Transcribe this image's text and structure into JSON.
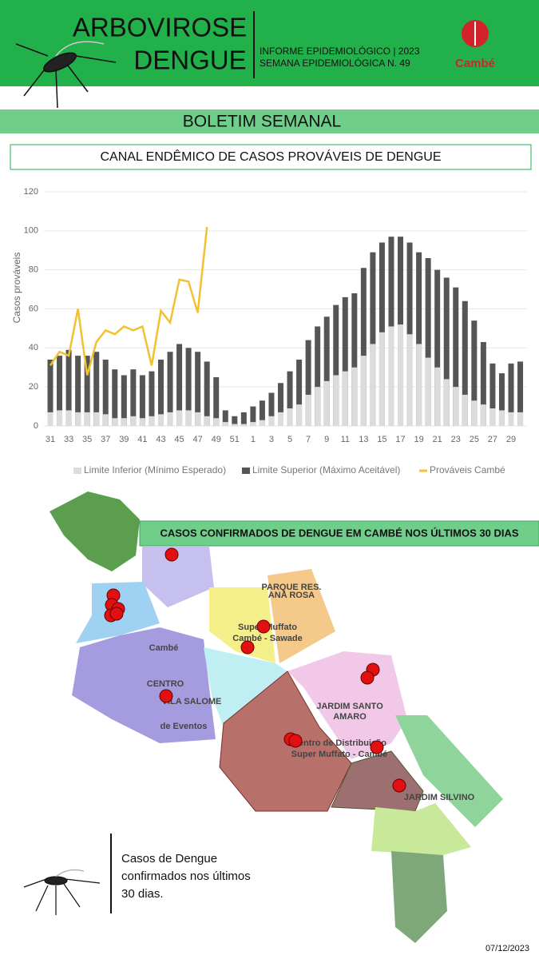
{
  "header": {
    "title_line1": "ARBOVIROSE",
    "title_line2": "DENGUE",
    "info_line1": "INFORME EPIDEMIOLÓGICO | 2023",
    "info_line2": "SEMANA EPIDEMIOLÓGICA  N. 49",
    "logo": "Cambé"
  },
  "banner": "BOLETIM SEMANAL",
  "chart_data": {
    "type": "bar_line",
    "title": "CANAL ENDÊMICO DE CASOS PROVÁVEIS DE DENGUE",
    "y_label": "Casos prováveis",
    "categories": [
      "31",
      null,
      "33",
      null,
      "35",
      null,
      "37",
      null,
      "39",
      null,
      "41",
      null,
      "43",
      null,
      "45",
      null,
      "47",
      null,
      "49",
      null,
      "51",
      null,
      "1",
      null,
      "3",
      null,
      "5",
      null,
      "7",
      null,
      "9",
      null,
      "11",
      null,
      "13",
      null,
      "15",
      null,
      "17",
      null,
      "19",
      null,
      "21",
      null,
      "23",
      null,
      "25",
      null,
      "27",
      null,
      "29",
      null
    ],
    "series": [
      {
        "name": "Limite Inferior (Mínimo Esperado)",
        "color": "#dcdcdc",
        "kind": "bar",
        "values": [
          7,
          8,
          8,
          7,
          7,
          7,
          6,
          4,
          4,
          5,
          4,
          5,
          6,
          7,
          8,
          8,
          7,
          5,
          4,
          2,
          1,
          1,
          2,
          3,
          5,
          7,
          9,
          11,
          16,
          20,
          23,
          26,
          28,
          30,
          36,
          42,
          48,
          51,
          52,
          47,
          42,
          35,
          30,
          24,
          20,
          16,
          13,
          11,
          9,
          8,
          7,
          7
        ]
      },
      {
        "name": "Limite Superior (Máximo Aceitável)",
        "color": "#555555",
        "kind": "bar",
        "values": [
          34,
          36,
          39,
          36,
          36,
          38,
          34,
          29,
          26,
          29,
          26,
          28,
          34,
          38,
          42,
          40,
          38,
          33,
          25,
          8,
          5,
          7,
          10,
          13,
          17,
          22,
          28,
          34,
          44,
          51,
          56,
          62,
          66,
          68,
          81,
          89,
          94,
          97,
          97,
          94,
          89,
          86,
          80,
          76,
          71,
          64,
          54,
          43,
          32,
          27,
          32,
          33
        ]
      },
      {
        "name": "Prováveis Cambé",
        "color": "#f2c12e",
        "kind": "line",
        "values": [
          31,
          38,
          36,
          60,
          26,
          43,
          49,
          47,
          51,
          49,
          51,
          31,
          59,
          53,
          75,
          74,
          58,
          102,
          null,
          null,
          null,
          null,
          null,
          null,
          null,
          null,
          null,
          null,
          null,
          null,
          null,
          null,
          null,
          null,
          null,
          null,
          null,
          null,
          null,
          null,
          null,
          null,
          null,
          null,
          null,
          null,
          null,
          null,
          null,
          null,
          null,
          null
        ]
      }
    ],
    "ylim": [
      0,
      120
    ],
    "yticks": [
      0,
      20,
      40,
      60,
      80,
      100,
      120
    ],
    "grid": true
  },
  "map": {
    "title": "CASOS CONFIRMADOS DE DENGUE EM CAMBÉ NOS ÚLTIMOS 30 DIAS",
    "labels": [
      "Cambé",
      "CENTRO",
      "VILA SALOME",
      "de Eventos",
      "Super Muffato",
      "Cambé - Sawade",
      "JARDIM SANTO",
      "AMARO",
      "Centro de Distribuição",
      "Super Muffato - Cambé",
      "JARDIM SILVINO",
      "PARQUE RES.",
      "ANA ROSA"
    ]
  },
  "caption": {
    "line1": "Casos de Dengue",
    "line2": "confirmados nos últimos",
    "line3": "30 dias."
  },
  "date": "07/12/2023"
}
